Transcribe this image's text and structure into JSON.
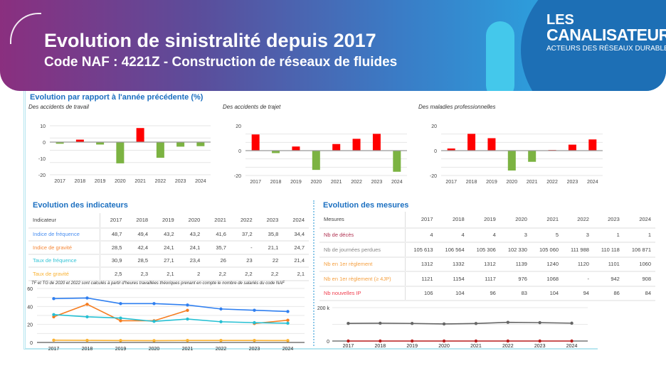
{
  "header": {
    "title": "Evolution de sinistralité depuis 2017",
    "subtitle": "Code NAF : 4221Z - Construction de réseaux de fluides"
  },
  "logo": {
    "line1": "LES",
    "line2": "CANALISATEURS",
    "line3": "ACTEURS DES RÉSEAUX DURABLES"
  },
  "section_evolution": {
    "title": "Evolution par rapport à l'année précédente (%)"
  },
  "colors": {
    "increase": "#ff0000",
    "decrease": "#7cb342",
    "if": "#2f7ff0",
    "ig": "#f57c1f",
    "tf": "#26c0d3",
    "tg": "#f9b233",
    "journees": "#666666",
    "deces": "#b71c1c"
  },
  "chart_data": [
    {
      "type": "bar",
      "subtitle": "Des accidents de travail",
      "categories": [
        "2017",
        "2018",
        "2019",
        "2020",
        "2021",
        "2022",
        "2023",
        "2024"
      ],
      "values": [
        -1,
        1.5,
        -1.5,
        -13,
        8.6,
        -9.6,
        -2.8,
        -2.5
      ],
      "yticks": [
        10,
        0,
        -10,
        -20
      ],
      "ylim": [
        -20,
        10
      ],
      "grid": true
    },
    {
      "type": "bar",
      "subtitle": "Des accidents de trajet",
      "categories": [
        "2017",
        "2018",
        "2019",
        "2020",
        "2021",
        "2022",
        "2023",
        "2024"
      ],
      "values": [
        13,
        -2,
        3.3,
        -15.5,
        5.3,
        9.5,
        13.5,
        -17
      ],
      "yticks": [
        20,
        0,
        -20
      ],
      "ylim": [
        -20,
        20
      ],
      "grid": true
    },
    {
      "type": "bar",
      "subtitle": "Des maladies professionnelles",
      "categories": [
        "2017",
        "2018",
        "2019",
        "2020",
        "2021",
        "2022",
        "2023",
        "2024"
      ],
      "values": [
        1.7,
        13.5,
        10,
        -16,
        -9,
        0.5,
        4.8,
        9
      ],
      "yticks": [
        20,
        0,
        -20
      ],
      "ylim": [
        -20,
        20
      ],
      "grid": true
    },
    {
      "type": "line",
      "categories": [
        "2017",
        "2018",
        "2019",
        "2020",
        "2021",
        "2022",
        "2023",
        "2024"
      ],
      "yticks": [
        60,
        40,
        20,
        0
      ],
      "ylim": [
        0,
        60
      ],
      "grid": true,
      "series": [
        {
          "key": "if",
          "values": [
            48.7,
            49.4,
            43.2,
            43.2,
            41.6,
            37.2,
            35.8,
            34.4
          ]
        },
        {
          "key": "ig",
          "values": [
            28.5,
            42.4,
            24.1,
            24.1,
            35.7,
            null,
            21.1,
            24.7
          ]
        },
        {
          "key": "tf",
          "values": [
            30.9,
            28.5,
            27.1,
            23.4,
            26,
            23,
            22,
            21.4
          ]
        },
        {
          "key": "tg",
          "values": [
            2.5,
            2.3,
            2.1,
            2,
            2.2,
            2.2,
            2.2,
            2.1
          ]
        }
      ]
    },
    {
      "type": "line",
      "categories": [
        "2017",
        "2018",
        "2019",
        "2020",
        "2021",
        "2022",
        "2023",
        "2024"
      ],
      "yticks": [
        "200 k",
        "0"
      ],
      "ylim": [
        0,
        200000
      ],
      "grid": true,
      "series": [
        {
          "key": "journees",
          "values": [
            105613,
            106564,
            105306,
            102330,
            105060,
            111988,
            110118,
            106871
          ]
        },
        {
          "key": "deces",
          "values": [
            4,
            4,
            4,
            3,
            5,
            3,
            1,
            1
          ]
        }
      ]
    }
  ],
  "indicateurs": {
    "title": "Evolution des indicateurs",
    "header": [
      "Indicateur",
      "2017",
      "2018",
      "2019",
      "2020",
      "2021",
      "2022",
      "2023",
      "2024"
    ],
    "rows": [
      {
        "label": "Indice de fréquence",
        "color": "#4a8ff0",
        "values": [
          "48,7",
          "49,4",
          "43,2",
          "43,2",
          "41,6",
          "37,2",
          "35,8",
          "34,4"
        ]
      },
      {
        "label": "Indice de gravité",
        "color": "#f5893a",
        "values": [
          "28,5",
          "42,4",
          "24,1",
          "24,1",
          "35,7",
          "-",
          "21,1",
          "24,7"
        ]
      },
      {
        "label": "Taux de fréquence",
        "color": "#35c4d6",
        "values": [
          "30,9",
          "28,5",
          "27,1",
          "23,4",
          "26",
          "23",
          "22",
          "21,4"
        ]
      },
      {
        "label": "Taux de gravité",
        "color": "#f9b233",
        "values": [
          "2,5",
          "2,3",
          "2,1",
          "2",
          "2,2",
          "2,2",
          "2,2",
          "2,1"
        ]
      }
    ],
    "note": "TF et TG de 2020 et 2022 sont calculés à partir d'heures travaillées théoriques prenant en compte le nombre de salariés du code NAF"
  },
  "mesures": {
    "title": "Evolution des mesures",
    "header": [
      "Mesures",
      "2017",
      "2018",
      "2019",
      "2020",
      "2021",
      "2022",
      "2023",
      "2024"
    ],
    "rows": [
      {
        "label": "Nb de décès",
        "color": "#b03050",
        "values": [
          "4",
          "4",
          "4",
          "3",
          "5",
          "3",
          "1",
          "1"
        ]
      },
      {
        "label": "Nb de journées perdues",
        "color": "#888888",
        "values": [
          "105 613",
          "106 564",
          "105 306",
          "102 330",
          "105 060",
          "111 988",
          "110 118",
          "106 871"
        ]
      },
      {
        "label": "Nb en 1er règlement",
        "color": "#f5a040",
        "values": [
          "1312",
          "1332",
          "1312",
          "1139",
          "1240",
          "1120",
          "1101",
          "1060"
        ]
      },
      {
        "label": "Nb en 1er règlement (≥ 4JP)",
        "color": "#f5a040",
        "values": [
          "1121",
          "1154",
          "1117",
          "976",
          "1068",
          "-",
          "942",
          "908"
        ]
      },
      {
        "label": "Nb nouvelles IP",
        "color": "#f04050",
        "values": [
          "106",
          "104",
          "96",
          "83",
          "104",
          "94",
          "86",
          "84"
        ]
      }
    ]
  }
}
